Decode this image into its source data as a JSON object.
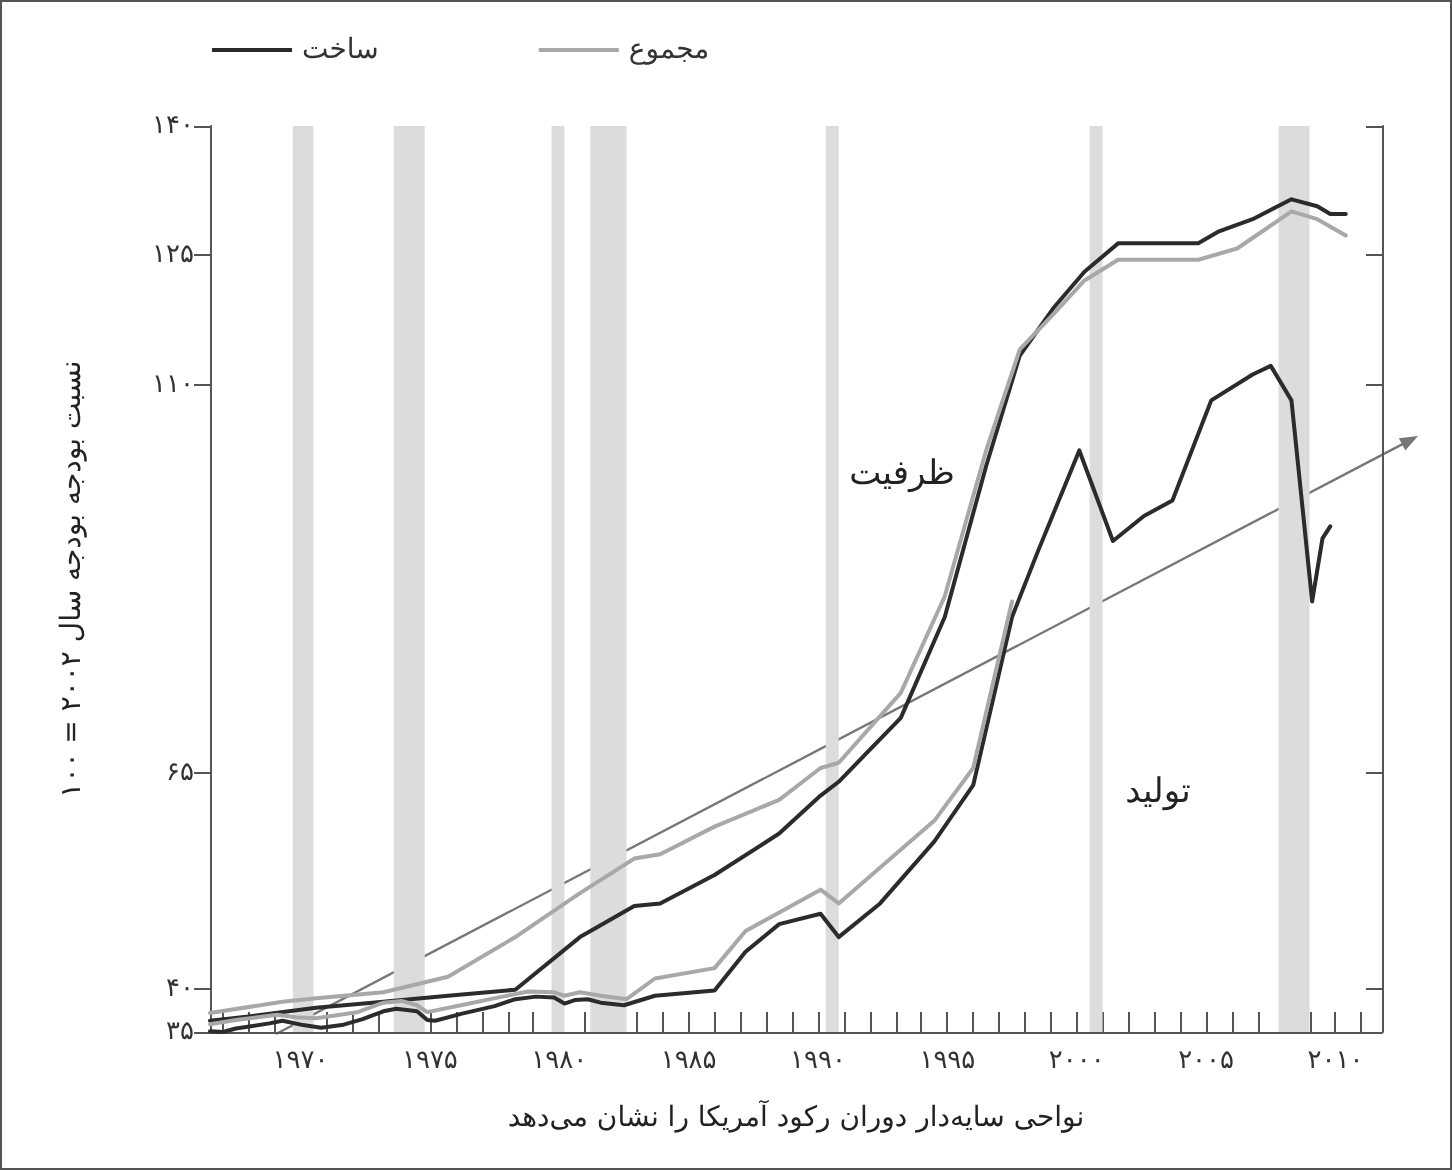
{
  "chart_data": {
    "type": "line",
    "xlabel": "نواحی سایه‌دار دوران رکود آمریکا را نشان می‌دهد",
    "ylabel": "نسبت بودجه بودجه سال ۲۰۰۲ = ۱۰۰",
    "xlim": [
      1966.5,
      2011.8
    ],
    "xticks": [
      {
        "value": 1967,
        "label": null
      },
      {
        "value": 1968,
        "label": null
      },
      {
        "value": 1969,
        "label": null
      },
      {
        "value": 1970,
        "label": "۱۹۷۰"
      },
      {
        "value": 1971,
        "label": null
      },
      {
        "value": 1972,
        "label": null
      },
      {
        "value": 1973,
        "label": null
      },
      {
        "value": 1974,
        "label": null
      },
      {
        "value": 1975,
        "label": "۱۹۷۵"
      },
      {
        "value": 1976,
        "label": null
      },
      {
        "value": 1977,
        "label": null
      },
      {
        "value": 1978,
        "label": null
      },
      {
        "value": 1979,
        "label": null
      },
      {
        "value": 1980,
        "label": "۱۹۸۰"
      },
      {
        "value": 1981,
        "label": null
      },
      {
        "value": 1982,
        "label": null
      },
      {
        "value": 1983,
        "label": null
      },
      {
        "value": 1984,
        "label": null
      },
      {
        "value": 1985,
        "label": "۱۹۸۵"
      },
      {
        "value": 1986,
        "label": null
      },
      {
        "value": 1987,
        "label": null
      },
      {
        "value": 1988,
        "label": null
      },
      {
        "value": 1989,
        "label": null
      },
      {
        "value": 1990,
        "label": "۱۹۹۰"
      },
      {
        "value": 1991,
        "label": null
      },
      {
        "value": 1992,
        "label": null
      },
      {
        "value": 1993,
        "label": null
      },
      {
        "value": 1994,
        "label": null
      },
      {
        "value": 1995,
        "label": "۱۹۹۵"
      },
      {
        "value": 1996,
        "label": null
      },
      {
        "value": 1997,
        "label": null
      },
      {
        "value": 1998,
        "label": null
      },
      {
        "value": 1999,
        "label": null
      },
      {
        "value": 2000,
        "label": "۲۰۰۰"
      },
      {
        "value": 2001,
        "label": null
      },
      {
        "value": 2002,
        "label": null
      },
      {
        "value": 2003,
        "label": null
      },
      {
        "value": 2004,
        "label": null
      },
      {
        "value": 2005,
        "label": "۲۰۰۵"
      },
      {
        "value": 2006,
        "label": null
      },
      {
        "value": 2007,
        "label": null
      },
      {
        "value": 2008,
        "label": null
      },
      {
        "value": 2009,
        "label": null
      },
      {
        "value": 2010,
        "label": "۲۰۱۰"
      },
      {
        "value": 2011,
        "label": null
      }
    ],
    "ylim": [
      35,
      140
    ],
    "yticks": [
      {
        "value": 35,
        "label": "۳۵"
      },
      {
        "value": 40,
        "label": "۴۰"
      },
      {
        "value": 65,
        "label": "۶۵"
      },
      {
        "value": 110,
        "label": "۱۱۰"
      },
      {
        "value": 125,
        "label": "۱۲۵"
      },
      {
        "value": 140,
        "label": "۱۴۰"
      }
    ],
    "grid": false,
    "legend": "top left",
    "marker": "none",
    "line_style": "solid",
    "bands": [
      {
        "axis": "x",
        "from": 1969.7,
        "to": 1970.5,
        "color": "#dcdcdc"
      },
      {
        "axis": "x",
        "from": 1973.6,
        "to": 1974.8,
        "color": "#dcdcdc"
      },
      {
        "axis": "x",
        "from": 1979.7,
        "to": 1980.2,
        "color": "#dcdcdc"
      },
      {
        "axis": "x",
        "from": 1981.2,
        "to": 1982.6,
        "color": "#dcdcdc"
      },
      {
        "axis": "x",
        "from": 1990.3,
        "to": 1990.8,
        "color": "#dcdcdc"
      },
      {
        "axis": "x",
        "from": 2000.5,
        "to": 2001.0,
        "color": "#dcdcdc"
      },
      {
        "axis": "x",
        "from": 2007.8,
        "to": 2009.0,
        "color": "#dcdcdc"
      }
    ],
    "annotations": [
      "ظرفیت",
      "تولید"
    ],
    "series": [
      {
        "name": "ساخت",
        "color": "#2b2b2b",
        "x": [
          1966.5,
          1968.0,
          1970.6,
          1973.2,
          1975.7,
          1978.3,
          1980.8,
          1982.9,
          1983.9,
          1986.0,
          1988.5,
          1990.1,
          1990.8,
          1993.2,
          1994.9,
          1996.5,
          1997.8,
          1999.1,
          2000.3,
          2001.6,
          2002.9,
          2004.7,
          2005.5,
          2006.8,
          2008.3,
          2009.3,
          2009.8,
          2010.4
        ],
        "values": [
          36.3,
          36.8,
          37.8,
          38.5,
          39.2,
          39.9,
          46.0,
          49.6,
          49.9,
          53.2,
          58.0,
          62.4,
          64.0,
          71.4,
          83.1,
          100.6,
          113.4,
          118.9,
          123.1,
          126.4,
          126.4,
          126.4,
          127.8,
          129.2,
          131.5,
          130.7,
          129.8,
          129.8
        ]
      },
      {
        "name": "مجموع",
        "color": "#a8a8a8",
        "x": [
          1966.5,
          1969.3,
          1970.6,
          1973.2,
          1975.7,
          1978.3,
          1980.8,
          1982.9,
          1983.9,
          1986.0,
          1988.5,
          1990.1,
          1990.8,
          1993.2,
          1994.9,
          1996.5,
          1997.8,
          1999.1,
          2000.3,
          2001.6,
          2004.7,
          2006.2,
          2008.3,
          2009.3,
          2010.4
        ],
        "values": [
          37.2,
          38.5,
          38.9,
          39.6,
          41.4,
          46.0,
          51.1,
          55.1,
          55.6,
          58.8,
          61.9,
          65.6,
          66.2,
          74.3,
          85.5,
          102.4,
          114.1,
          118.2,
          122.1,
          124.5,
          124.5,
          125.8,
          130.1,
          129.2,
          127.3
        ]
      },
      {
        "color": "#2b2b2b",
        "x": [
          1966.5,
          1967.0,
          1967.5,
          1968.8,
          1969.3,
          1970.1,
          1970.8,
          1971.6,
          1972.4,
          1973.2,
          1973.7,
          1974.5,
          1974.9,
          1975.2,
          1976.2,
          1977.5,
          1978.3,
          1979.1,
          1979.8,
          1980.2,
          1980.6,
          1981.1,
          1981.6,
          1982.5,
          1983.7,
          1986.0,
          1987.2,
          1988.5,
          1990.1,
          1990.8,
          1992.4,
          1994.5,
          1996.0,
          1997.5,
          1998.5,
          2000.1,
          2001.4,
          2002.6,
          2003.7,
          2005.2,
          2006.8,
          2007.5,
          2008.3,
          2009.1,
          2009.5,
          2009.8
        ],
        "values": [
          35.1,
          35.0,
          35.4,
          36.0,
          36.3,
          35.8,
          35.5,
          35.8,
          36.5,
          37.4,
          37.7,
          37.4,
          36.4,
          36.3,
          37.1,
          38.0,
          38.8,
          39.1,
          39.0,
          38.3,
          38.7,
          38.8,
          38.4,
          38.1,
          39.2,
          39.8,
          44.3,
          47.5,
          48.7,
          46.0,
          49.9,
          57.1,
          63.6,
          83.1,
          90.7,
          102.4,
          91.9,
          94.8,
          96.6,
          108.2,
          111.2,
          112.2,
          108.2,
          84.9,
          92.2,
          93.6
        ]
      },
      {
        "color": "#a8a8a8",
        "x": [
          1966.5,
          1967.5,
          1969.1,
          1969.8,
          1970.6,
          1972.2,
          1973.2,
          1973.9,
          1974.5,
          1974.9,
          1976.2,
          1977.8,
          1978.8,
          1979.8,
          1980.2,
          1980.8,
          1981.6,
          1982.6,
          1983.7,
          1986.0,
          1987.2,
          1990.1,
          1990.8,
          1994.5,
          1996.0,
          1997.5
        ],
        "values": [
          35.9,
          36.4,
          37.0,
          36.7,
          36.6,
          37.3,
          38.4,
          38.6,
          38.1,
          37.3,
          38.1,
          39.1,
          39.7,
          39.6,
          39.2,
          39.6,
          39.2,
          38.8,
          41.2,
          42.4,
          46.7,
          51.5,
          49.9,
          59.5,
          65.6,
          84.9
        ]
      }
    ]
  }
}
